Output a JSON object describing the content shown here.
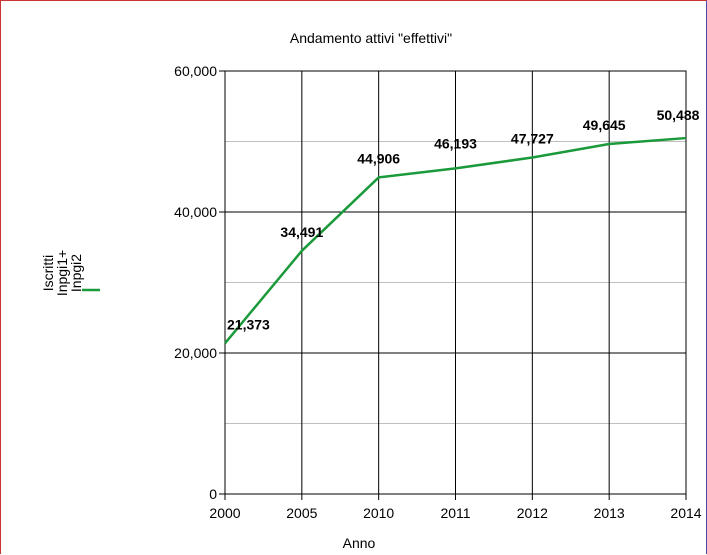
{
  "chart_data": {
    "type": "line",
    "title": "Andamento attivi \"effettivi\"",
    "xlabel": "Anno",
    "ylabel": "",
    "categories": [
      "2000",
      "2005",
      "2010",
      "2011",
      "2012",
      "2013",
      "2014"
    ],
    "series": [
      {
        "name": "Iscritti Inpgi1+ Inpgi2",
        "name_lines": [
          "Iscritti",
          "Inpgi1+",
          "Inpgi2"
        ],
        "values": [
          21373,
          34491,
          44906,
          46193,
          47727,
          49645,
          50488
        ],
        "labels": [
          "21,373",
          "34,491",
          "44,906",
          "46,193",
          "47,727",
          "49,645",
          "50,488"
        ],
        "color": "#1a9a3a"
      }
    ],
    "ylim": [
      0,
      60000
    ],
    "yticks": [
      0,
      20000,
      40000,
      60000
    ],
    "ytick_labels": [
      "0",
      "20,000",
      "40,000",
      "60,000"
    ],
    "grid": true,
    "legend_position": "left"
  }
}
